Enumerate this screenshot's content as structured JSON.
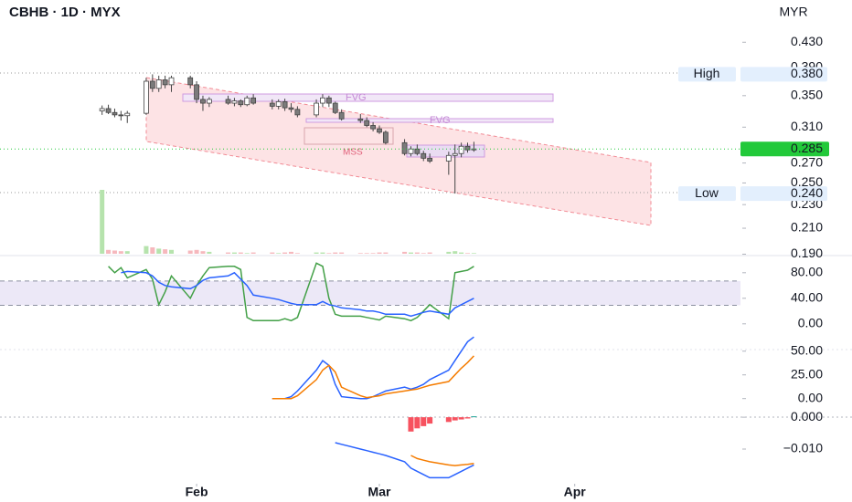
{
  "chart_data": [
    {
      "type": "candlestick",
      "title": "CBHB · 1D · MYX",
      "currency": "MYR",
      "log_scale": true,
      "x": [
        -15,
        -14,
        -13,
        -12,
        -11,
        -8,
        -7,
        -6,
        -5,
        -4,
        -1,
        0,
        1,
        2,
        5,
        6,
        7,
        8,
        9,
        12,
        13,
        14,
        15,
        16,
        19,
        20,
        21,
        22,
        23,
        26,
        27,
        28,
        29,
        30,
        33,
        34,
        35,
        36,
        37,
        40,
        41,
        42,
        43,
        44
      ],
      "open": [
        0.33,
        0.333,
        0.328,
        0.325,
        0.324,
        0.327,
        0.37,
        0.36,
        0.372,
        0.365,
        0.375,
        0.365,
        0.345,
        0.34,
        0.345,
        0.34,
        0.343,
        0.338,
        0.347,
        0.34,
        0.336,
        0.342,
        0.334,
        0.332,
        0.325,
        0.34,
        0.347,
        0.34,
        0.328,
        0.32,
        0.318,
        0.312,
        0.308,
        0.304,
        0.292,
        0.28,
        0.285,
        0.28,
        0.275,
        0.272,
        0.278,
        0.28,
        0.288,
        0.284
      ],
      "high": [
        0.337,
        0.338,
        0.333,
        0.33,
        0.33,
        0.375,
        0.38,
        0.378,
        0.378,
        0.378,
        0.378,
        0.37,
        0.35,
        0.348,
        0.35,
        0.347,
        0.345,
        0.35,
        0.352,
        0.345,
        0.345,
        0.346,
        0.34,
        0.336,
        0.345,
        0.352,
        0.35,
        0.342,
        0.332,
        0.326,
        0.322,
        0.316,
        0.312,
        0.306,
        0.296,
        0.288,
        0.29,
        0.283,
        0.28,
        0.282,
        0.29,
        0.292,
        0.292,
        0.293
      ],
      "low": [
        0.325,
        0.326,
        0.322,
        0.318,
        0.315,
        0.325,
        0.355,
        0.355,
        0.36,
        0.355,
        0.36,
        0.34,
        0.33,
        0.335,
        0.338,
        0.336,
        0.335,
        0.336,
        0.338,
        0.332,
        0.332,
        0.33,
        0.328,
        0.322,
        0.322,
        0.335,
        0.335,
        0.326,
        0.318,
        0.315,
        0.31,
        0.305,
        0.302,
        0.29,
        0.278,
        0.277,
        0.278,
        0.272,
        0.27,
        0.258,
        0.24,
        0.276,
        0.281,
        0.282
      ],
      "close": [
        0.333,
        0.328,
        0.325,
        0.324,
        0.327,
        0.37,
        0.36,
        0.372,
        0.365,
        0.375,
        0.365,
        0.345,
        0.34,
        0.345,
        0.34,
        0.343,
        0.338,
        0.347,
        0.34,
        0.336,
        0.342,
        0.334,
        0.332,
        0.325,
        0.34,
        0.347,
        0.34,
        0.328,
        0.32,
        0.318,
        0.312,
        0.308,
        0.304,
        0.292,
        0.28,
        0.285,
        0.28,
        0.275,
        0.272,
        0.278,
        0.28,
        0.288,
        0.284,
        0.285
      ],
      "volume": [
        100,
        6,
        5,
        4,
        4,
        12,
        10,
        8,
        7,
        6,
        5,
        6,
        4,
        3,
        2,
        2,
        2,
        1,
        2,
        2,
        1,
        2,
        3,
        1,
        2,
        2,
        1,
        2,
        2,
        1,
        1,
        1,
        2,
        2,
        3,
        2,
        2,
        1,
        2,
        3,
        4,
        2,
        1,
        1
      ],
      "up_color": "#ffffff",
      "down_color": "#7b7b7b",
      "border_color": "#444444",
      "volume_up_color": "#b6e3ad",
      "volume_down_color": "#f6b8bd",
      "ylim": [
        0.189,
        0.506
      ],
      "yticks": [
        {
          "value": 0.43,
          "label": "0.430"
        },
        {
          "value": 0.39,
          "label": "0.390"
        },
        {
          "value": 0.35,
          "label": "0.350"
        },
        {
          "value": 0.31,
          "label": "0.310"
        },
        {
          "value": 0.27,
          "label": "0.270"
        },
        {
          "value": 0.25,
          "label": "0.250"
        },
        {
          "value": 0.23,
          "label": "0.230"
        },
        {
          "value": 0.21,
          "label": "0.210"
        },
        {
          "value": 0.19,
          "label": "0.190"
        }
      ],
      "xlim": [
        -31.2,
        86.3
      ],
      "xticks": [
        {
          "value": 0,
          "label": "Feb"
        },
        {
          "value": 29,
          "label": "Mar"
        },
        {
          "value": 60,
          "label": "Apr"
        }
      ],
      "annotations": [
        "FVG",
        "FVG",
        "MSS"
      ],
      "high_marker": {
        "text": "High",
        "value": 0.38,
        "value_label": "0.380"
      },
      "low_marker": {
        "text": "Low",
        "value": 0.24,
        "value_label": "0.240"
      },
      "last_price": {
        "value": 0.285,
        "color": "#22c93a"
      }
    },
    {
      "type": "line",
      "ylim": [
        -36,
        104
      ],
      "band": [
        29,
        67
      ],
      "band_color": "#ece8f7",
      "yticks": [
        {
          "value": 80,
          "label": "80.00"
        },
        {
          "value": 40,
          "label": "40.00"
        },
        {
          "value": 0,
          "label": "0.00"
        }
      ],
      "x": [
        -15,
        -14,
        -13,
        -12,
        -11,
        -8,
        -7,
        -6,
        -5,
        -4,
        -1,
        0,
        1,
        2,
        5,
        6,
        7,
        8,
        9,
        12,
        13,
        14,
        15,
        16,
        19,
        20,
        21,
        22,
        23,
        26,
        27,
        28,
        29,
        30,
        33,
        34,
        35,
        36,
        37,
        40,
        41,
        42,
        43,
        44
      ],
      "series": [
        {
          "color": "#43a047",
          "values": [
            null,
            90,
            80,
            88,
            72,
            85,
            70,
            30,
            50,
            75,
            40,
            60,
            75,
            88,
            90,
            90,
            85,
            10,
            5,
            5,
            5,
            8,
            5,
            10,
            95,
            90,
            40,
            15,
            12,
            12,
            10,
            8,
            6,
            12,
            8,
            5,
            10,
            20,
            30,
            8,
            80,
            82,
            84,
            90
          ]
        },
        {
          "color": "#2962ff",
          "values": [
            null,
            null,
            null,
            80,
            82,
            80,
            75,
            65,
            60,
            58,
            55,
            60,
            68,
            72,
            75,
            80,
            70,
            60,
            45,
            40,
            38,
            35,
            32,
            30,
            30,
            35,
            30,
            28,
            25,
            22,
            20,
            20,
            18,
            15,
            15,
            12,
            15,
            18,
            20,
            15,
            25,
            30,
            35,
            40
          ]
        }
      ]
    },
    {
      "type": "line",
      "ylim": [
        -8,
        69
      ],
      "yticks": [
        {
          "value": 50,
          "label": "50.00"
        },
        {
          "value": 25,
          "label": "25.00"
        },
        {
          "value": 0,
          "label": "0.00"
        }
      ],
      "x": [
        12,
        13,
        14,
        15,
        16,
        19,
        20,
        21,
        22,
        23,
        26,
        27,
        28,
        29,
        30,
        33,
        34,
        35,
        36,
        37,
        40,
        41,
        42,
        43,
        44
      ],
      "series": [
        {
          "color": "#2962ff",
          "values": [
            0,
            0,
            0,
            2,
            8,
            30,
            40,
            35,
            15,
            2,
            0,
            0,
            2,
            5,
            8,
            12,
            10,
            12,
            15,
            20,
            30,
            40,
            50,
            60,
            65
          ]
        },
        {
          "color": "#f57c00",
          "values": [
            0,
            0,
            0,
            0,
            3,
            20,
            30,
            35,
            28,
            12,
            3,
            1,
            2,
            3,
            5,
            8,
            9,
            10,
            12,
            14,
            18,
            25,
            32,
            38,
            45
          ]
        }
      ]
    },
    {
      "type": "line",
      "ylim": [
        -0.0209,
        0.0029
      ],
      "yticks": [
        {
          "value": 0,
          "label": "0.000"
        },
        {
          "value": -0.01,
          "label": "−0.010"
        }
      ],
      "x": [
        22,
        23,
        26,
        27,
        28,
        29,
        30,
        33,
        34,
        35,
        36,
        37,
        40,
        41,
        42,
        43,
        44
      ],
      "series": [
        {
          "style": "bar",
          "color": "#26a69a",
          "negative_color": "#f7525f",
          "values": [
            null,
            null,
            null,
            null,
            null,
            null,
            null,
            null,
            -0.0045,
            -0.0035,
            -0.0028,
            -0.002,
            -0.0015,
            -0.001,
            -0.0007,
            -0.0004,
            0.0003
          ]
        },
        {
          "color": "#2962ff",
          "values": [
            -0.008,
            -0.0085,
            -0.01,
            -0.0105,
            -0.011,
            -0.0115,
            -0.012,
            -0.014,
            -0.016,
            -0.017,
            -0.018,
            -0.019,
            -0.019,
            -0.018,
            -0.017,
            -0.016,
            -0.015
          ]
        },
        {
          "color": "#f57c00",
          "values": [
            null,
            null,
            null,
            null,
            null,
            null,
            null,
            null,
            -0.012,
            -0.013,
            -0.0135,
            -0.014,
            -0.015,
            -0.0152,
            -0.015,
            -0.0148,
            -0.0145
          ]
        }
      ]
    }
  ]
}
